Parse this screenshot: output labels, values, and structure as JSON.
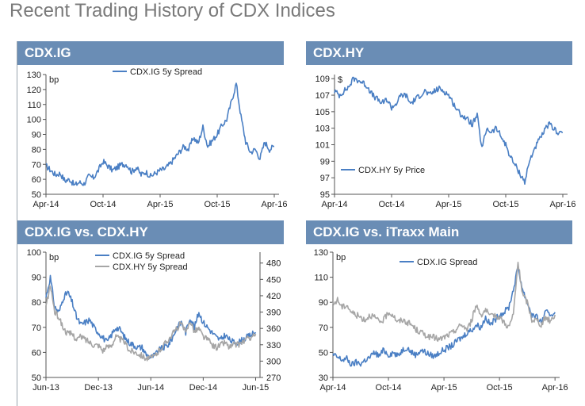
{
  "page_title": "Recent Trading History of CDX Indices",
  "colors": {
    "header": "#6a8db5",
    "blue": "#4a7fc4",
    "gray": "#a6a6a6"
  },
  "chart_data": [
    {
      "id": "cdxig",
      "title": "CDX.IG",
      "type": "line",
      "unit_label": "bp",
      "y_ticks": [
        "50",
        "60",
        "70",
        "80",
        "90",
        "100",
        "110",
        "120",
        "130"
      ],
      "ylim": [
        50,
        130
      ],
      "x_ticks": [
        "Apr-14",
        "Oct-14",
        "Apr-15",
        "Oct-15",
        "Apr-16"
      ],
      "xlim": [
        0,
        24.5
      ],
      "legend": "top-center",
      "series": [
        {
          "name": "CDX.IG 5y Spread",
          "color": "#4a7fc4",
          "x": [
            0,
            0.5,
            1,
            1.5,
            2,
            2.5,
            3,
            3.5,
            4,
            4.5,
            5,
            5.5,
            6,
            6.5,
            7,
            7.5,
            8,
            8.5,
            9,
            9.5,
            10,
            10.5,
            11,
            11.5,
            12,
            12.5,
            13,
            13.5,
            14,
            14.5,
            15,
            15.5,
            16,
            16.5,
            17,
            17.5,
            18,
            18.5,
            19,
            19.5,
            20,
            20.5,
            21,
            21.5,
            22,
            22.5,
            23,
            23.5,
            24
          ],
          "y": [
            69,
            66,
            63,
            64,
            59,
            60,
            56,
            58,
            57,
            62,
            61,
            66,
            72,
            69,
            66,
            68,
            70,
            70,
            65,
            68,
            63,
            65,
            62,
            64,
            66,
            67,
            70,
            74,
            78,
            82,
            80,
            88,
            84,
            95,
            82,
            86,
            90,
            96,
            100,
            112,
            124,
            102,
            85,
            78,
            80,
            74,
            85,
            80,
            82
          ]
        }
      ]
    },
    {
      "id": "cdxhy",
      "title": "CDX.HY",
      "type": "line",
      "unit_label": "$",
      "y_ticks": [
        "95",
        "97",
        "99",
        "101",
        "103",
        "105",
        "107",
        "109"
      ],
      "ylim": [
        95,
        109.5
      ],
      "x_ticks": [
        "Apr-14",
        "Oct-14",
        "Apr-15",
        "Oct-15",
        "Apr-16"
      ],
      "xlim": [
        0,
        24.5
      ],
      "legend": "bottom-left",
      "series": [
        {
          "name": "CDX.HY 5y Price",
          "color": "#4a7fc4",
          "x": [
            0,
            0.5,
            1,
            1.5,
            2,
            2.5,
            3,
            3.5,
            4,
            4.5,
            5,
            5.5,
            6,
            6.5,
            7,
            7.5,
            8,
            8.5,
            9,
            9.5,
            10,
            10.5,
            11,
            11.5,
            12,
            12.5,
            13,
            13.5,
            14,
            14.5,
            15,
            15.5,
            16,
            16.5,
            17,
            17.5,
            18,
            18.5,
            19,
            19.5,
            20,
            20.5,
            21,
            21.5,
            22,
            22.5,
            23,
            23.5,
            24
          ],
          "y": [
            107.5,
            107,
            107.5,
            108,
            109,
            108.8,
            108.5,
            108,
            107,
            106.5,
            106,
            106.5,
            105.5,
            106,
            107,
            107,
            106,
            106.5,
            107,
            107.5,
            107,
            107.5,
            107.8,
            107.5,
            107,
            106,
            105,
            104.5,
            104,
            103.5,
            104.5,
            100.5,
            103,
            102.5,
            103,
            102,
            101,
            99.5,
            98.5,
            97.5,
            96.5,
            99,
            100.5,
            101.5,
            102.5,
            103.5,
            103,
            102.5,
            102.5
          ]
        }
      ]
    },
    {
      "id": "igvshy",
      "title": "CDX.IG vs. CDX.HY",
      "type": "line",
      "unit_label": "bp",
      "y_ticks": [
        "50",
        "60",
        "70",
        "80",
        "90",
        "100"
      ],
      "ylim": [
        50,
        100
      ],
      "y2_ticks": [
        "270",
        "300",
        "330",
        "360",
        "390",
        "420",
        "450",
        "480"
      ],
      "y2lim": [
        270,
        500
      ],
      "x_ticks": [
        "Jun-13",
        "Dec-13",
        "Jun-14",
        "Dec-14",
        "Jun-15"
      ],
      "xlim": [
        0,
        24.5
      ],
      "legend": "top-center",
      "series": [
        {
          "name": "CDX.IG 5y Spread",
          "color": "#4a7fc4",
          "axis": "left",
          "x": [
            0,
            0.5,
            1,
            1.5,
            2,
            2.5,
            3,
            3.5,
            4,
            4.5,
            5,
            5.5,
            6,
            6.5,
            7,
            7.5,
            8,
            8.5,
            9,
            9.5,
            10,
            10.5,
            11,
            11.5,
            12,
            12.5,
            13,
            13.5,
            14,
            14.5,
            15,
            15.5,
            16,
            16.5,
            17,
            17.5,
            18,
            18.5,
            19,
            19.5,
            20,
            20.5,
            21,
            21.5,
            22,
            22.5,
            23,
            23.5,
            24
          ],
          "y": [
            82,
            90,
            78,
            76,
            82,
            84,
            80,
            74,
            71,
            72,
            73,
            70,
            68,
            66,
            64,
            67,
            70,
            69,
            66,
            64,
            63,
            62,
            62,
            59,
            58,
            59,
            61,
            62,
            63,
            66,
            70,
            72,
            68,
            74,
            70,
            76,
            72,
            70,
            68,
            66,
            65,
            67,
            65,
            64,
            64,
            65,
            66,
            67,
            68
          ]
        },
        {
          "name": "CDX.HY 5y Spread",
          "color": "#a6a6a6",
          "axis": "right",
          "x": [
            0,
            0.5,
            1,
            1.5,
            2,
            2.5,
            3,
            3.5,
            4,
            4.5,
            5,
            5.5,
            6,
            6.5,
            7,
            7.5,
            8,
            8.5,
            9,
            9.5,
            10,
            10.5,
            11,
            11.5,
            12,
            12.5,
            13,
            13.5,
            14,
            14.5,
            15,
            15.5,
            16,
            16.5,
            17,
            17.5,
            18,
            18.5,
            19,
            19.5,
            20,
            20.5,
            21,
            21.5,
            22,
            22.5,
            23,
            23.5,
            24
          ],
          "y": [
            400,
            440,
            390,
            380,
            360,
            350,
            350,
            340,
            345,
            340,
            335,
            330,
            330,
            320,
            325,
            330,
            345,
            340,
            335,
            320,
            318,
            315,
            310,
            305,
            305,
            310,
            320,
            330,
            340,
            350,
            360,
            370,
            350,
            375,
            355,
            360,
            345,
            340,
            330,
            325,
            330,
            335,
            325,
            330,
            330,
            335,
            340,
            345,
            350
          ]
        }
      ]
    },
    {
      "id": "igvsitraxx",
      "title": "CDX.IG vs. iTraxx Main",
      "type": "line",
      "unit_label": "bp",
      "y_ticks": [
        "30",
        "50",
        "70",
        "90",
        "110",
        "130"
      ],
      "ylim": [
        30,
        130
      ],
      "x_ticks": [
        "Apr-14",
        "Oct-14",
        "Apr-15",
        "Oct-15",
        "Apr-16"
      ],
      "xlim": [
        0,
        24.5
      ],
      "legend": "top-center",
      "series": [
        {
          "name": "CDX.IG Spread",
          "color": "#4a7fc4",
          "x": [
            0,
            0.5,
            1,
            1.5,
            2,
            2.5,
            3,
            3.5,
            4,
            4.5,
            5,
            5.5,
            6,
            6.5,
            7,
            7.5,
            8,
            8.5,
            9,
            9.5,
            10,
            10.5,
            11,
            11.5,
            12,
            12.5,
            13,
            13.5,
            14,
            14.5,
            15,
            15.5,
            16,
            16.5,
            17,
            17.5,
            18,
            18.5,
            19,
            19.5,
            20,
            20.5,
            21,
            21.5,
            22,
            22.5,
            23,
            23.5,
            24
          ],
          "y": [
            48,
            46,
            44,
            45,
            40,
            42,
            41,
            44,
            46,
            50,
            47,
            52,
            48,
            50,
            47,
            52,
            54,
            50,
            48,
            52,
            50,
            48,
            47,
            50,
            52,
            54,
            56,
            60,
            62,
            66,
            68,
            72,
            70,
            78,
            72,
            76,
            80,
            82,
            86,
            100,
            118,
            100,
            90,
            80,
            78,
            74,
            82,
            80,
            82
          ]
        },
        {
          "name": "",
          "color": "#a6a6a6",
          "x": [
            0,
            0.5,
            1,
            1.5,
            2,
            2.5,
            3,
            3.5,
            4,
            4.5,
            5,
            5.5,
            6,
            6.5,
            7,
            7.5,
            8,
            8.5,
            9,
            9.5,
            10,
            10.5,
            11,
            11.5,
            12,
            12.5,
            13,
            13.5,
            14,
            14.5,
            15,
            15.5,
            16,
            16.5,
            17,
            17.5,
            18,
            18.5,
            19,
            19.5,
            20,
            20.5,
            21,
            21.5,
            22,
            22.5,
            23,
            23.5,
            24
          ],
          "y": [
            88,
            92,
            86,
            88,
            82,
            80,
            78,
            76,
            80,
            78,
            74,
            76,
            82,
            80,
            74,
            76,
            74,
            72,
            68,
            66,
            64,
            62,
            62,
            60,
            62,
            64,
            66,
            70,
            72,
            68,
            76,
            88,
            80,
            84,
            78,
            80,
            78,
            74,
            70,
            80,
            122,
            96,
            90,
            76,
            76,
            72,
            78,
            75,
            80
          ]
        }
      ]
    }
  ]
}
